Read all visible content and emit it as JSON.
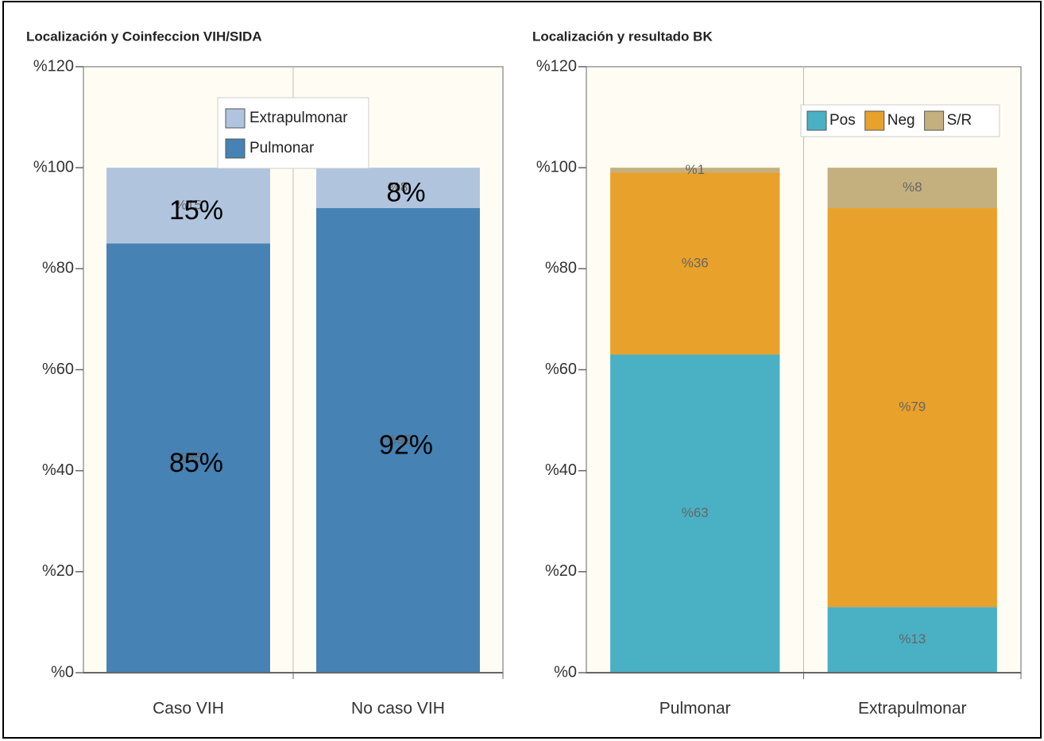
{
  "chart_data": [
    {
      "type": "stacked_bar",
      "title": "Localización y Coinfeccion VIH/SIDA",
      "categories": [
        "Caso VIH",
        "No caso VIH"
      ],
      "series": [
        {
          "name": "Pulmonar",
          "color": "#4682b4",
          "values": [
            85,
            92
          ],
          "value_labels": [
            "%85",
            "%92"
          ],
          "overlay_labels": [
            "85%",
            "92%"
          ]
        },
        {
          "name": "Extrapulmonar",
          "color": "#b0c4de",
          "values": [
            15,
            8
          ],
          "value_labels": [
            "%15",
            "%8"
          ],
          "overlay_labels": [
            "15%",
            "8%"
          ]
        }
      ],
      "ylim": [
        0,
        120
      ],
      "yticks": [
        {
          "value": 0,
          "label": "%0"
        },
        {
          "value": 20,
          "label": "%20"
        },
        {
          "value": 40,
          "label": "%40"
        },
        {
          "value": 60,
          "label": "%60"
        },
        {
          "value": 80,
          "label": "%80"
        },
        {
          "value": 100,
          "label": "%100"
        },
        {
          "value": 120,
          "label": "%120"
        }
      ],
      "legend": "top-center",
      "legend_orientation": "vertical"
    },
    {
      "type": "stacked_bar",
      "title": "Localización y resultado BK",
      "categories": [
        "Pulmonar",
        "Extrapulmonar"
      ],
      "series": [
        {
          "name": "Pos",
          "color": "#4ab0c4",
          "values": [
            63,
            13
          ],
          "value_labels": [
            "%63",
            "%13"
          ]
        },
        {
          "name": "Neg",
          "color": "#e8a12a",
          "values": [
            36,
            79
          ],
          "value_labels": [
            "%36",
            "%79"
          ]
        },
        {
          "name": "S/R",
          "color": "#c4b07e",
          "values": [
            1,
            8
          ],
          "value_labels": [
            "%1",
            "%8"
          ]
        }
      ],
      "ylim": [
        0,
        120
      ],
      "yticks": [
        {
          "value": 0,
          "label": "%0"
        },
        {
          "value": 20,
          "label": "%20"
        },
        {
          "value": 40,
          "label": "%40"
        },
        {
          "value": 60,
          "label": "%60"
        },
        {
          "value": 80,
          "label": "%80"
        },
        {
          "value": 100,
          "label": "%100"
        },
        {
          "value": 120,
          "label": "%120"
        }
      ],
      "legend": "top-right",
      "legend_orientation": "horizontal"
    }
  ]
}
